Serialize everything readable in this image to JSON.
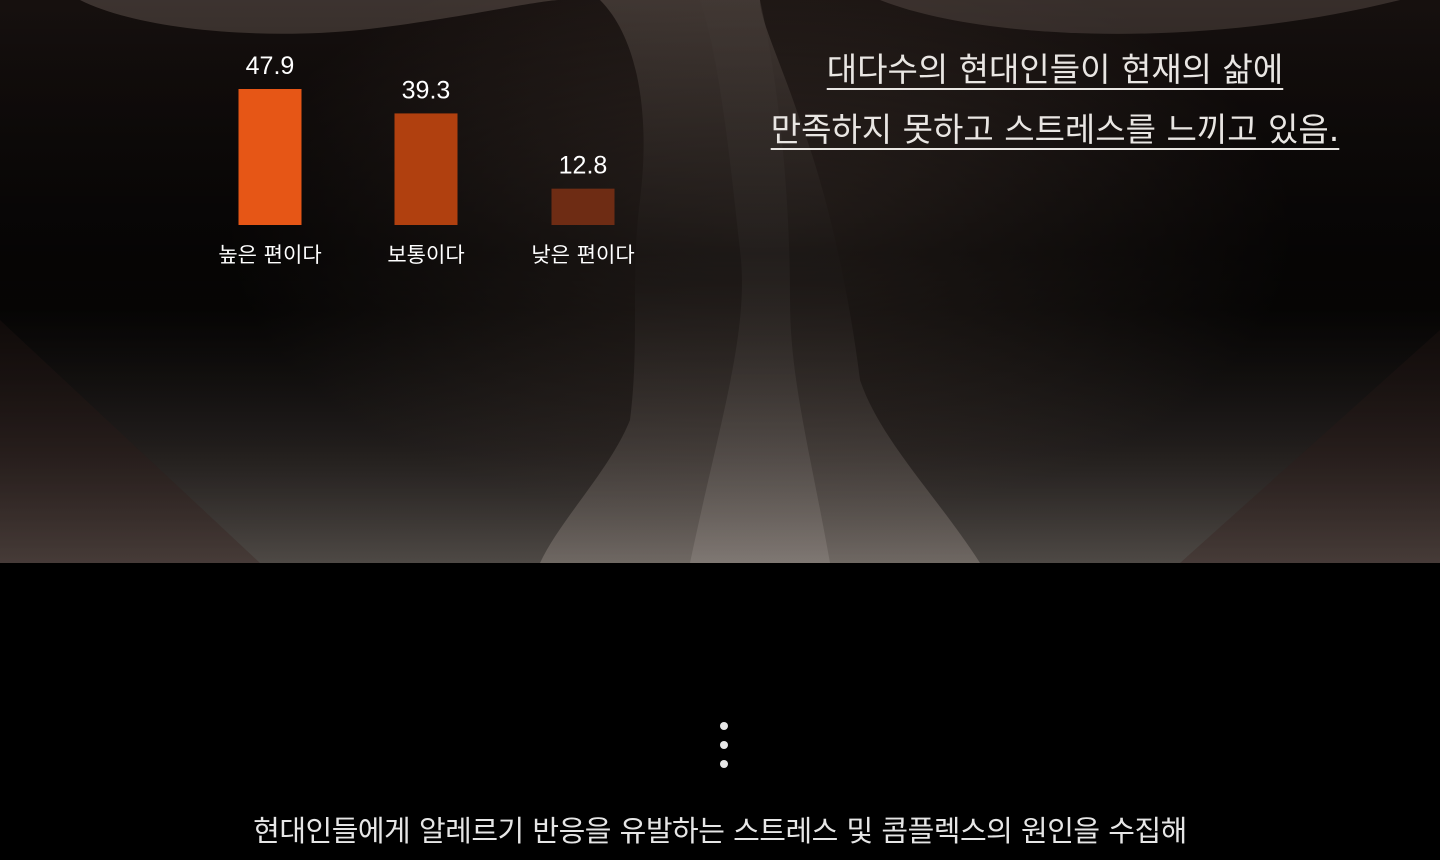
{
  "chart_data": {
    "type": "bar",
    "categories": [
      "높은 편이다",
      "보통이다",
      "낮은 편이다"
    ],
    "values": [
      47.9,
      39.3,
      12.8
    ],
    "value_labels": [
      "47.9",
      "39.3",
      "12.8"
    ],
    "colors": [
      "#e65616",
      "#b0400f",
      "#6e2c14"
    ],
    "title": "",
    "xlabel": "",
    "ylabel": "",
    "grid": false,
    "legend": "none"
  },
  "headline": {
    "line1": "대다수의 현대인들이 현재의 삶에",
    "line2": "만족하지 못하고 스트레스를 느끼고 있음."
  },
  "subtitle": "현대인들에게 알레르기 반응을 유발하는 스트레스 및 콤플렉스의 원인을 수집해",
  "icons": {
    "more": "vertical-ellipsis-icon"
  }
}
